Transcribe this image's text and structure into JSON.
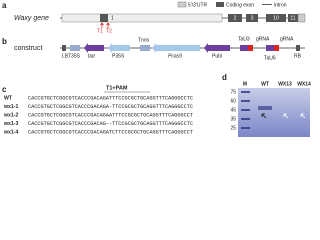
{
  "panel_a": {
    "label": "a",
    "gene": "Waxy gene",
    "legend": [
      "5'/3'UTR",
      "Coding exon",
      "intron"
    ],
    "exons": [
      "1",
      "2",
      "3",
      "10",
      "11"
    ],
    "targets": [
      "T1",
      "T2"
    ]
  },
  "panel_b": {
    "label": "b",
    "construct": "construct",
    "elements": [
      "LB",
      "T35S",
      "bar",
      "P35S",
      "Tnos",
      "Pcas9",
      "Pubi",
      "TaU3",
      "gRNA",
      "TaU6",
      "gRNA",
      "RB"
    ]
  },
  "panel_c": {
    "label": "c",
    "header": "T1+PAM",
    "rows": [
      {
        "name": "WT",
        "seq": "CACCGTGCTCGGCGTCACCCGACAGATTTCCGCGCTGCAGGTTTCAGGGCCTC"
      },
      {
        "name": "wx1-1",
        "seq": "CACCGTGCTCGGCGTCACCCGACAGA-TTCCGCGCTGCAGGTTTCAGGGCCTC"
      },
      {
        "name": "wx1-2",
        "seq": "CACCGTGCTCGGCGTCACCCGACAGAATTTCCGCGCTGCAGGTTTCAGGGCCT"
      },
      {
        "name": "wx1-3",
        "seq": "CACCGTGCTCGGCGTCACCCGACAG--TTCCGCGCTGCAGGTTTCAGGGCCTC"
      },
      {
        "name": "wx1-4",
        "seq": "CACCGTGCTCGGCGTCACCCGACAGATCTTCCGCGCTGCAGGTTTCAGGGCCT"
      }
    ]
  },
  "panel_d": {
    "label": "d",
    "lanes": [
      "M",
      "WT",
      "WX13",
      "WX14"
    ],
    "ladder": [
      "75",
      "60",
      "45",
      "35",
      "25"
    ]
  }
}
